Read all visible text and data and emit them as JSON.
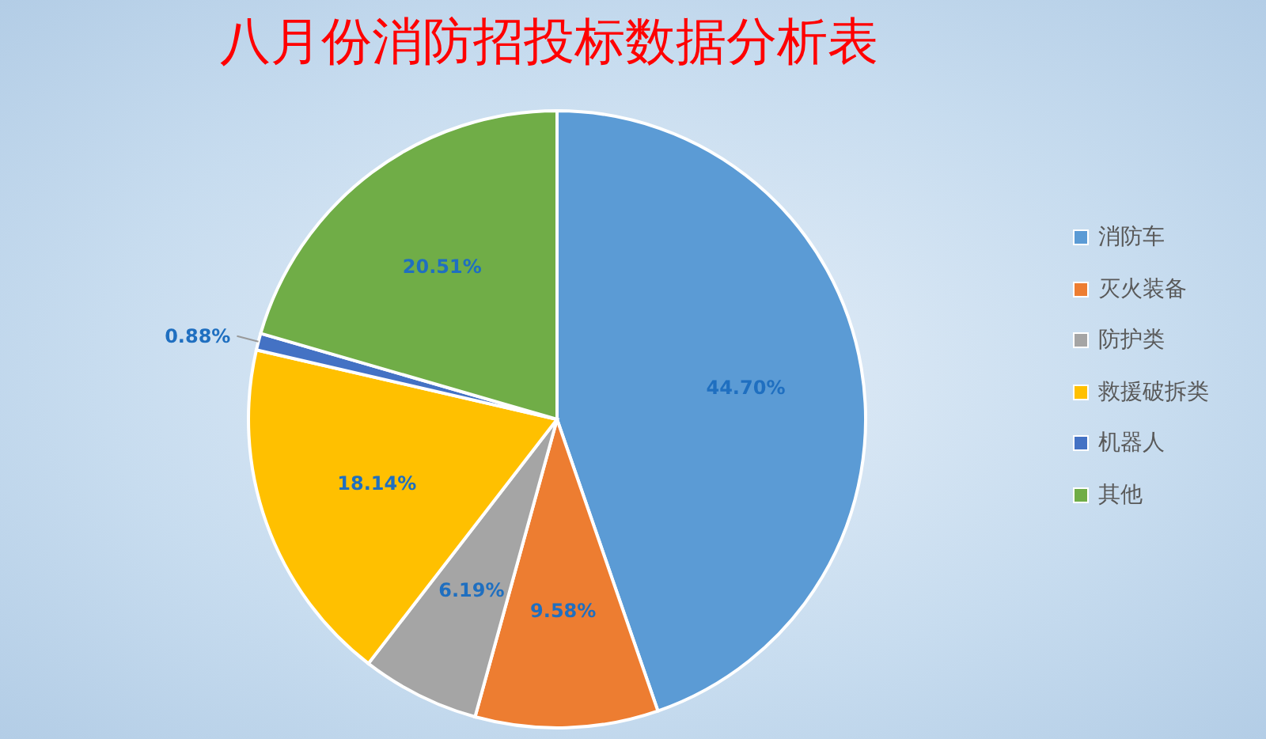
{
  "chart_data": {
    "type": "pie",
    "title": "八月份消防招投标数据分析表",
    "categories": [
      "消防车",
      "灭火装备",
      "防护类",
      "救援破拆类",
      "机器人",
      "其他"
    ],
    "values": [
      44.7,
      9.58,
      6.19,
      18.14,
      0.88,
      20.51
    ],
    "colors": [
      "#5b9bd5",
      "#ed7d31",
      "#a5a5a5",
      "#ffc000",
      "#4472c4",
      "#70ad47"
    ],
    "value_labels": [
      "44.70%",
      "9.58%",
      "6.19%",
      "18.14%",
      "0.88%",
      "20.51%"
    ],
    "legend": "right"
  }
}
